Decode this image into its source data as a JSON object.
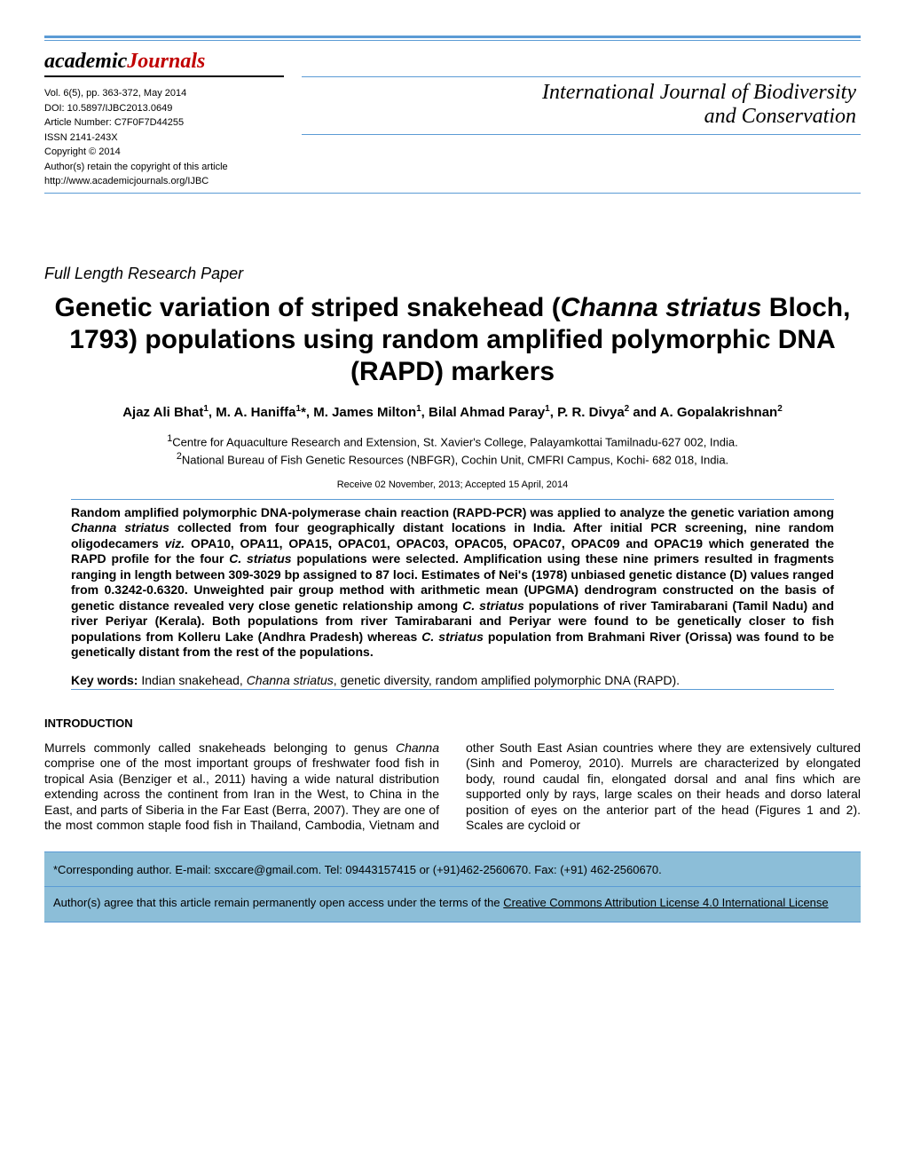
{
  "colors": {
    "rule": "#5b9bd5",
    "footer_bg": "#8cbed8",
    "logo_red": "#c00000",
    "page_bg": "#ffffff",
    "text": "#000000"
  },
  "header": {
    "logo_part1": "academic",
    "logo_part2": "Journals",
    "meta_lines": {
      "vol_pp": "Vol. 6(5), pp. 363-372, May 2014",
      "doi": "DOI: 10.5897/IJBC2013.0649",
      "article_number": "Article Number: C7F0F7D44255",
      "issn": "ISSN 2141-243X",
      "copyright": "Copyright © 2014",
      "rights": "Author(s) retain the copyright of this article",
      "url": "http://www.academicjournals.org/IJBC"
    },
    "journal_name_line1": "International Journal of Biodiversity",
    "journal_name_line2": "and Conservation"
  },
  "paper": {
    "type_label": "Full Length Research Paper",
    "title_html": "Genetic variation of striped snakehead (<span class='italic'>Channa striatus</span> Bloch, 1793) populations using random amplified polymorphic DNA (RAPD) markers",
    "authors_html": "Ajaz Ali Bhat<sup>1</sup>, M. A. Haniffa<sup>1</sup>*, M. James Milton<sup>1</sup>, Bilal Ahmad Paray<sup>1</sup>, P. R. Divya<sup>2</sup> and A. Gopalakrishnan<sup>2</sup>",
    "affiliations_html": "<sup>1</sup>Centre for Aquaculture Research and Extension, St. Xavier's College, Palayamkottai Tamilnadu-627 002, India.<br><sup>2</sup>National Bureau of Fish Genetic Resources (NBFGR), Cochin Unit, CMFRI Campus, Kochi- 682 018, India.",
    "dates": "Receive 02 November, 2013; Accepted 15 April, 2014",
    "abstract_html": "Random amplified polymorphic DNA-polymerase chain reaction (RAPD-PCR) was applied to analyze the genetic variation among <span class='italic'>Channa striatus</span> collected from four geographically distant locations in India. After initial PCR screening, nine random oligodecamers <span class='italic'>viz.</span> OPA10, OPA11, OPA15, OPAC01, OPAC03, OPAC05, OPAC07, OPAC09 and OPAC19 which generated the RAPD profile for the four <span class='italic'>C. striatus</span> populations were selected. Amplification using these nine primers resulted in fragments ranging in length between 309-3029 bp assigned to 87 loci. Estimates of Nei's (1978) unbiased genetic distance (D) values ranged from 0.3242-0.6320. Unweighted pair group method with arithmetic mean (UPGMA) dendrogram constructed on the basis of genetic distance revealed very close genetic relationship among <span class='italic'>C. striatus</span> populations of river Tamirabarani (Tamil Nadu) and river Periyar (Kerala). Both populations from river Tamirabarani and Periyar were found to be genetically closer to fish populations from Kolleru Lake (Andhra Pradesh) whereas <span class='italic'>C. striatus</span> population from Brahmani River (Orissa) was found to be genetically distant from the rest of the populations.",
    "keywords_html": "<b>Key words:</b> Indian snakehead, <span class='italic'>Channa striatus</span>, genetic diversity, random amplified polymorphic DNA (RAPD).",
    "introduction_heading": "INTRODUCTION",
    "intro_body_html": "Murrels commonly called snakeheads belonging to genus <span class='italic'>Channa</span> comprise one of the most important groups of freshwater food fish in tropical Asia (Benziger et al., 2011) having a wide natural distribution extending across the continent from Iran in the West, to China in the East, and parts of Siberia in the Far East (Berra, 2007). They are one of the most common staple food fish in Thailand, Cambodia, Vietnam and other South East Asian countries where they are extensively cultured (Sinh and Pomeroy, 2010). Murrels are characterized by elongated body, round caudal fin, elongated dorsal and anal fins which are supported only by rays, large scales on their heads and dorso lateral position of eyes on the anterior part of the head (Figures 1 and 2). Scales are cycloid or"
  },
  "footer": {
    "corresponding": "*Corresponding author. E-mail: sxccare@gmail.com. Tel: 09443157415 or (+91)462-2560670. Fax: (+91) 462-2560670.",
    "license_html": "Author(s) agree that this article remain permanently open access under the terms of the <span class='underline'>Creative Commons Attribution License 4.0 International License</span>"
  }
}
